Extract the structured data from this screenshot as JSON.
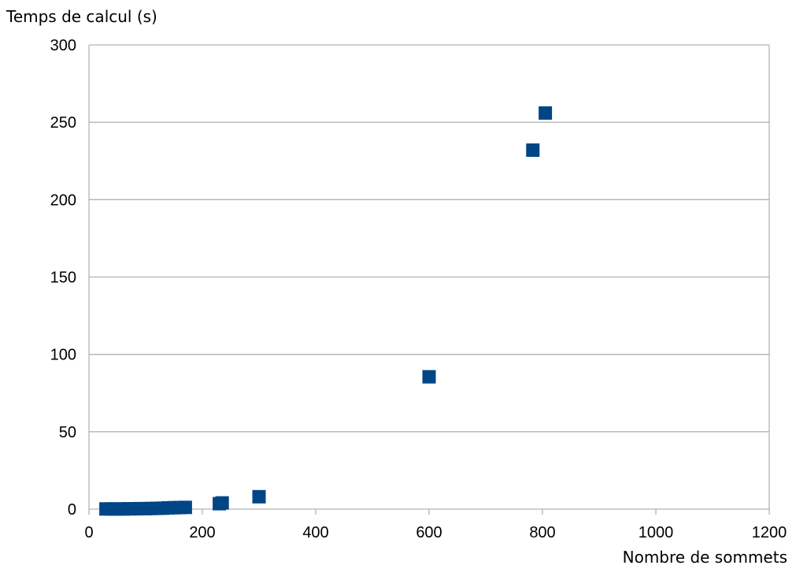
{
  "chart_data": {
    "type": "scatter",
    "title": "",
    "xlabel": "Nombre de sommets",
    "ylabel": "Temps de calcul (s)",
    "xlim": [
      0,
      1200
    ],
    "ylim": [
      0,
      300
    ],
    "x_ticks": [
      0,
      200,
      400,
      600,
      800,
      1000,
      1200
    ],
    "y_ticks": [
      0,
      50,
      100,
      150,
      200,
      250,
      300
    ],
    "x_tick_labels": [
      "0",
      "200",
      "400",
      "600",
      "800",
      "1000",
      "1200"
    ],
    "y_tick_labels": [
      "0",
      "50",
      "100",
      "150",
      "200",
      "250",
      "300"
    ],
    "grid": "horizontal",
    "legend": "none",
    "marker": "square",
    "series": [
      {
        "color": "#004586",
        "points": [
          {
            "x": 30,
            "y": 0.1
          },
          {
            "x": 40,
            "y": 0.1
          },
          {
            "x": 50,
            "y": 0.1
          },
          {
            "x": 60,
            "y": 0.1
          },
          {
            "x": 70,
            "y": 0.2
          },
          {
            "x": 80,
            "y": 0.2
          },
          {
            "x": 90,
            "y": 0.3
          },
          {
            "x": 100,
            "y": 0.3
          },
          {
            "x": 110,
            "y": 0.4
          },
          {
            "x": 120,
            "y": 0.5
          },
          {
            "x": 130,
            "y": 0.6
          },
          {
            "x": 140,
            "y": 0.8
          },
          {
            "x": 150,
            "y": 0.9
          },
          {
            "x": 160,
            "y": 1.0
          },
          {
            "x": 170,
            "y": 1.1
          },
          {
            "x": 230,
            "y": 3.5
          },
          {
            "x": 235,
            "y": 4.0
          },
          {
            "x": 300,
            "y": 8.0
          },
          {
            "x": 600,
            "y": 85.5
          },
          {
            "x": 783,
            "y": 232
          },
          {
            "x": 805,
            "y": 256
          }
        ]
      }
    ]
  }
}
